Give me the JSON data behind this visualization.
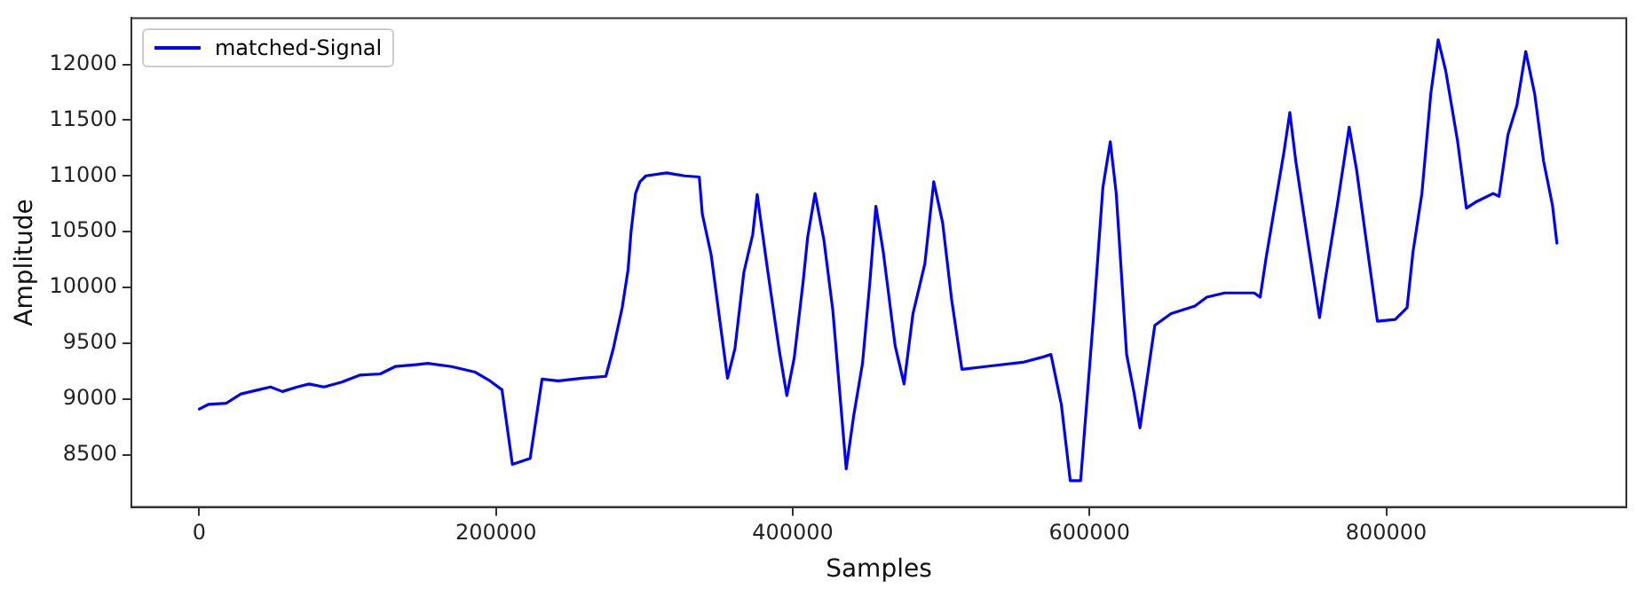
{
  "chart_data": {
    "type": "line",
    "xlabel": "Samples",
    "ylabel": "Amplitude",
    "legend": "top left",
    "grid": false,
    "marker": "none",
    "line_style": "solid",
    "xlim": [
      -45800,
      961800
    ],
    "xticks": [
      0,
      200000,
      400000,
      600000,
      800000
    ],
    "ylim": [
      8030,
      12415
    ],
    "yticks": [
      8500,
      9000,
      9500,
      10000,
      10500,
      11000,
      11500,
      12000
    ],
    "series": [
      {
        "name": "matched-Signal",
        "color": "#0000ff",
        "x": [
          0,
          6000,
          18000,
          28000,
          40000,
          48000,
          56000,
          66000,
          74000,
          84000,
          96000,
          108000,
          122000,
          132000,
          146000,
          154000,
          170000,
          186000,
          196000,
          204000,
          211000,
          223000,
          231000,
          242000,
          258000,
          274000,
          279000,
          285000,
          289000,
          291000,
          294000,
          297000,
          301000,
          315000,
          327000,
          337000,
          339000,
          345000,
          351000,
          356000,
          361000,
          367000,
          373000,
          376000,
          383000,
          391000,
          396000,
          401000,
          407000,
          410000,
          415000,
          421000,
          427000,
          436000,
          441000,
          447000,
          452000,
          456000,
          461000,
          469000,
          475000,
          481000,
          489000,
          495000,
          501000,
          507000,
          514000,
          531000,
          555000,
          567000,
          574000,
          581000,
          587000,
          594000,
          603000,
          609000,
          614000,
          618000,
          625000,
          630000,
          634000,
          644000,
          655000,
          671000,
          679000,
          691000,
          711000,
          715000,
          719000,
          723000,
          731000,
          735000,
          739000,
          747000,
          755000,
          759000,
          767000,
          775000,
          780000,
          787000,
          794000,
          806000,
          814000,
          818000,
          824000,
          830000,
          835000,
          840000,
          848000,
          854000,
          860000,
          872000,
          876000,
          882000,
          888000,
          894000,
          900000,
          906000,
          912000,
          915000
        ],
        "values": [
          8909,
          8950,
          8960,
          9044,
          9082,
          9107,
          9066,
          9107,
          9134,
          9107,
          9150,
          9213,
          9224,
          9290,
          9307,
          9318,
          9290,
          9240,
          9161,
          9082,
          8413,
          8467,
          9177,
          9161,
          9186,
          9202,
          9449,
          9817,
          10159,
          10501,
          10842,
          10948,
          11000,
          11027,
          11000,
          10990,
          10659,
          10290,
          9686,
          9186,
          9450,
          10133,
          10475,
          10833,
          10159,
          9424,
          9030,
          9370,
          10054,
          10448,
          10842,
          10423,
          9792,
          8372,
          8845,
          9319,
          10054,
          10727,
          10317,
          9476,
          9134,
          9765,
          10211,
          10948,
          10580,
          9897,
          9265,
          9292,
          9328,
          9370,
          9398,
          8950,
          8267,
          8267,
          9792,
          10896,
          11306,
          10842,
          9398,
          9055,
          8740,
          9660,
          9765,
          9833,
          9912,
          9950,
          9950,
          9912,
          10265,
          10580,
          11211,
          11568,
          11133,
          10423,
          9729,
          10080,
          10738,
          11437,
          11054,
          10369,
          9697,
          9713,
          9817,
          10317,
          10842,
          11737,
          12221,
          11946,
          11316,
          10711,
          10763,
          10842,
          10817,
          11369,
          11631,
          12115,
          11737,
          11133,
          10738,
          10396
        ]
      }
    ]
  }
}
